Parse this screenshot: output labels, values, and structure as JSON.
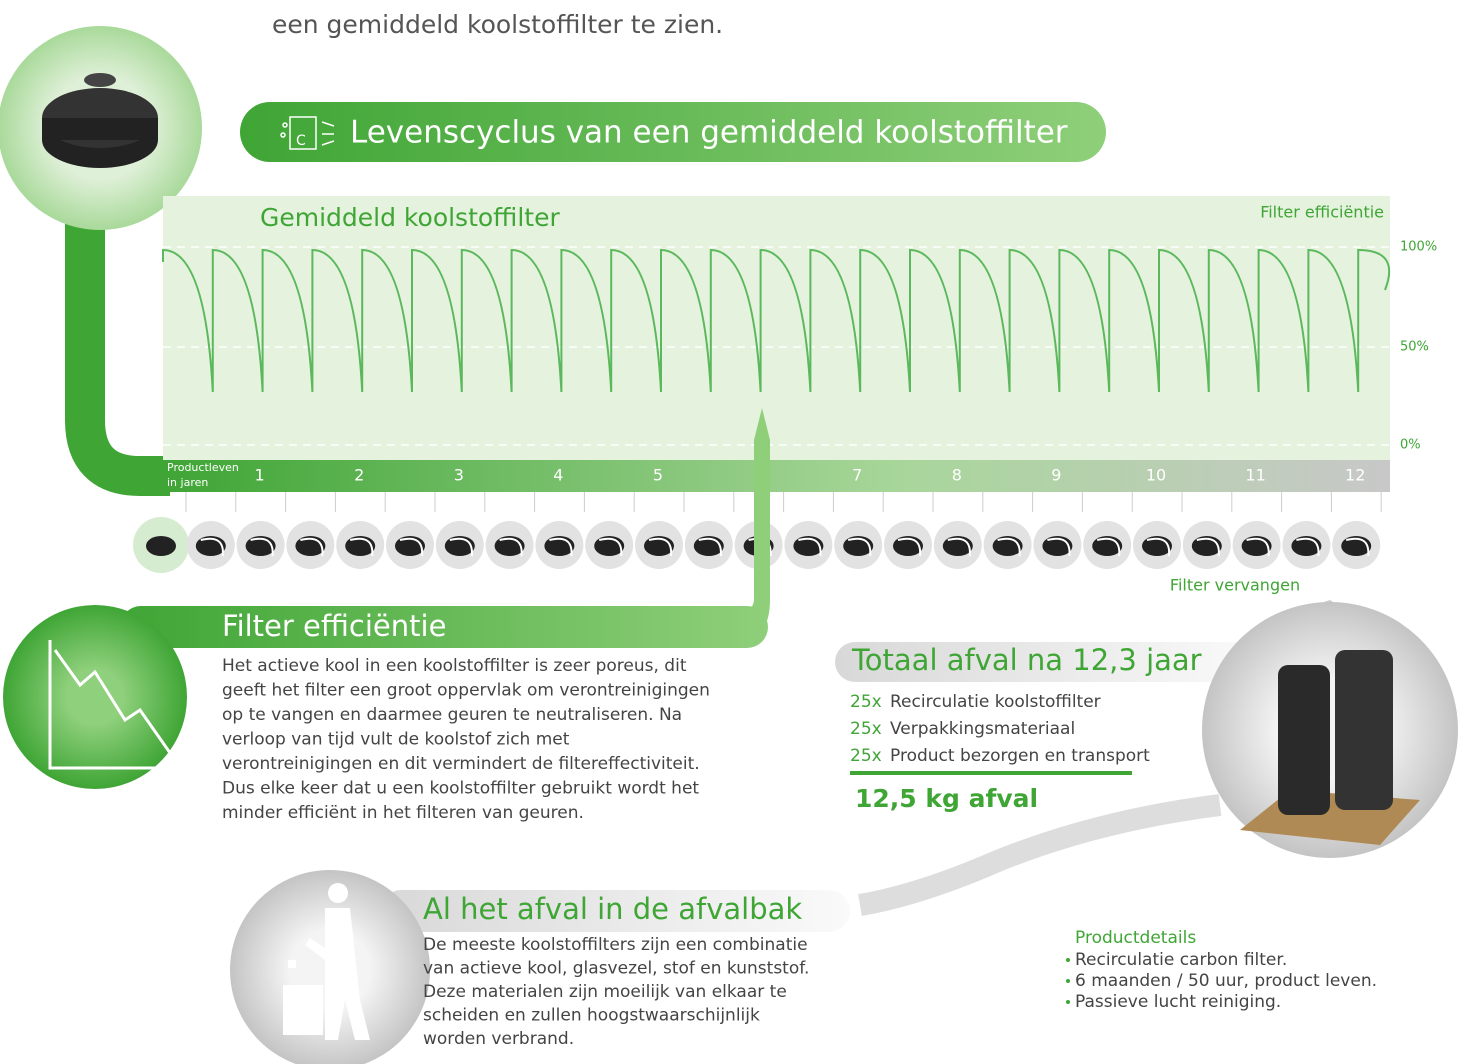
{
  "intro": "een gemiddeld koolstoffilter te zien.",
  "banner": "Levenscyclus van een gemiddeld koolstoffilter",
  "graph": {
    "title": "Gemiddeld koolstoffilter",
    "y_axis_label": "Filter efficiëntie",
    "yticks": [
      "100%",
      "50%",
      "0%"
    ],
    "x_axis_label": [
      "Productleven",
      "in jaren"
    ],
    "xticks": [
      "1",
      "2",
      "3",
      "4",
      "5",
      "7",
      "8",
      "9",
      "10",
      "11",
      "12"
    ]
  },
  "replace_label": "Filter vervangen",
  "efficiency": {
    "title": "Filter efficiëntie",
    "lines": [
      "Het actieve kool in een koolstoffilter is zeer poreus, dit",
      "geeft het filter een groot oppervlak om verontreinigingen",
      "op te vangen en daarmee geuren te neutraliseren. Na",
      "verloop van tijd vult de koolstof zich met",
      "verontreinigingen en dit vermindert de filtereffectiviteit.",
      "Dus elke keer dat u een koolstoffilter gebruikt wordt het",
      "minder efficiënt in het filteren van geuren."
    ]
  },
  "waste_total": {
    "title": "Totaal afval na 12,3 jaar",
    "items": [
      {
        "count": "25x",
        "label": "Recirculatie koolstoffilter"
      },
      {
        "count": "25x",
        "label": "Verpakkingsmateriaal"
      },
      {
        "count": "25x",
        "label": "Product bezorgen en transport"
      }
    ],
    "total": "12,5 kg afval"
  },
  "bin": {
    "title": "Al het afval in de afvalbak",
    "lines": [
      "De meeste koolstoffilters zijn een combinatie",
      "van actieve kool, glasvezel, stof en kunststof.",
      "Deze materialen zijn moeilijk van elkaar te",
      "scheiden en zullen hoogstwaarschijnlijk",
      "worden verbrand."
    ]
  },
  "details": {
    "title": "Productdetails",
    "items": [
      "Recirculatie carbon filter.",
      "6 maanden / 50 uur, product leven.",
      "Passieve lucht reiniging."
    ]
  }
}
